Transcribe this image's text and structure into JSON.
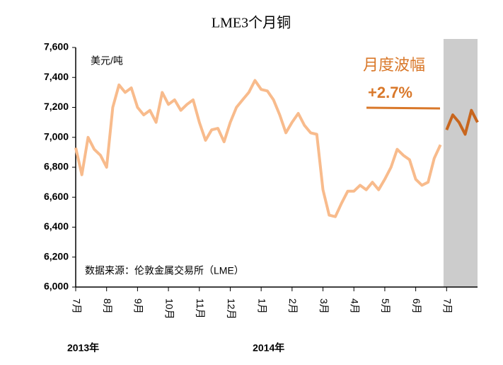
{
  "chart_data": {
    "type": "line",
    "title": "LME3个月铜",
    "y_unit": "美元/吨",
    "annotations": [
      "月度波幅",
      "+2.7%"
    ],
    "source": "数据来源：伦敦金属交易所（LME）",
    "year_labels": [
      "2013年",
      "2014年"
    ],
    "categories": [
      "7月",
      null,
      null,
      null,
      null,
      "8月",
      null,
      null,
      null,
      null,
      "9月",
      null,
      null,
      null,
      null,
      "10月",
      null,
      null,
      null,
      null,
      "11月",
      null,
      null,
      null,
      null,
      "12月",
      null,
      null,
      null,
      null,
      "1月",
      null,
      null,
      null,
      null,
      "2月",
      null,
      null,
      null,
      null,
      "3月",
      null,
      null,
      null,
      null,
      "4月",
      null,
      null,
      null,
      null,
      "5月",
      null,
      null,
      null,
      null,
      "6月",
      null,
      null,
      null,
      null,
      "7月",
      null,
      null,
      null,
      null,
      null
    ],
    "series": [
      {
        "color": "#f8bb8c",
        "values": [
          6930,
          6750,
          7000,
          6920,
          6880,
          6800,
          7200,
          7350,
          7300,
          7330,
          7200,
          7150,
          7180,
          7100,
          7300,
          7220,
          7250,
          7180,
          7220,
          7250,
          7100,
          6980,
          7050,
          7060,
          6970,
          7100,
          7200,
          7250,
          7300,
          7380,
          7320,
          7310,
          7250,
          7150,
          7030,
          7100,
          7160,
          7080,
          7030,
          7020,
          6650,
          6480,
          6470,
          6560,
          6640,
          6640,
          6680,
          6650,
          6700,
          6650,
          6720,
          6800,
          6920,
          6880,
          6850,
          6720,
          6680,
          6700,
          6860,
          6950,
          null,
          null,
          null,
          null,
          null,
          null
        ]
      },
      {
        "color": "#c8661e",
        "values": [
          null,
          null,
          null,
          null,
          null,
          null,
          null,
          null,
          null,
          null,
          null,
          null,
          null,
          null,
          null,
          null,
          null,
          null,
          null,
          null,
          null,
          null,
          null,
          null,
          null,
          null,
          null,
          null,
          null,
          null,
          null,
          null,
          null,
          null,
          null,
          null,
          null,
          null,
          null,
          null,
          null,
          null,
          null,
          null,
          null,
          null,
          null,
          null,
          null,
          null,
          null,
          null,
          null,
          null,
          null,
          null,
          null,
          null,
          null,
          null,
          7050,
          7150,
          7100,
          7020,
          7180,
          7100
        ]
      }
    ],
    "shade_color": "#cccccc",
    "ylim": [
      6000,
      7600
    ],
    "yticks": [
      {
        "value": 6000,
        "label": "6,000"
      },
      {
        "value": 6200,
        "label": "6,200"
      },
      {
        "value": 6400,
        "label": "6,400"
      },
      {
        "value": 6600,
        "label": "6,600"
      },
      {
        "value": 6800,
        "label": "6,800"
      },
      {
        "value": 7000,
        "label": "7,000"
      },
      {
        "value": 7200,
        "label": "7,200"
      },
      {
        "value": 7400,
        "label": "7,400"
      },
      {
        "value": 7600,
        "label": "7,600"
      }
    ]
  }
}
